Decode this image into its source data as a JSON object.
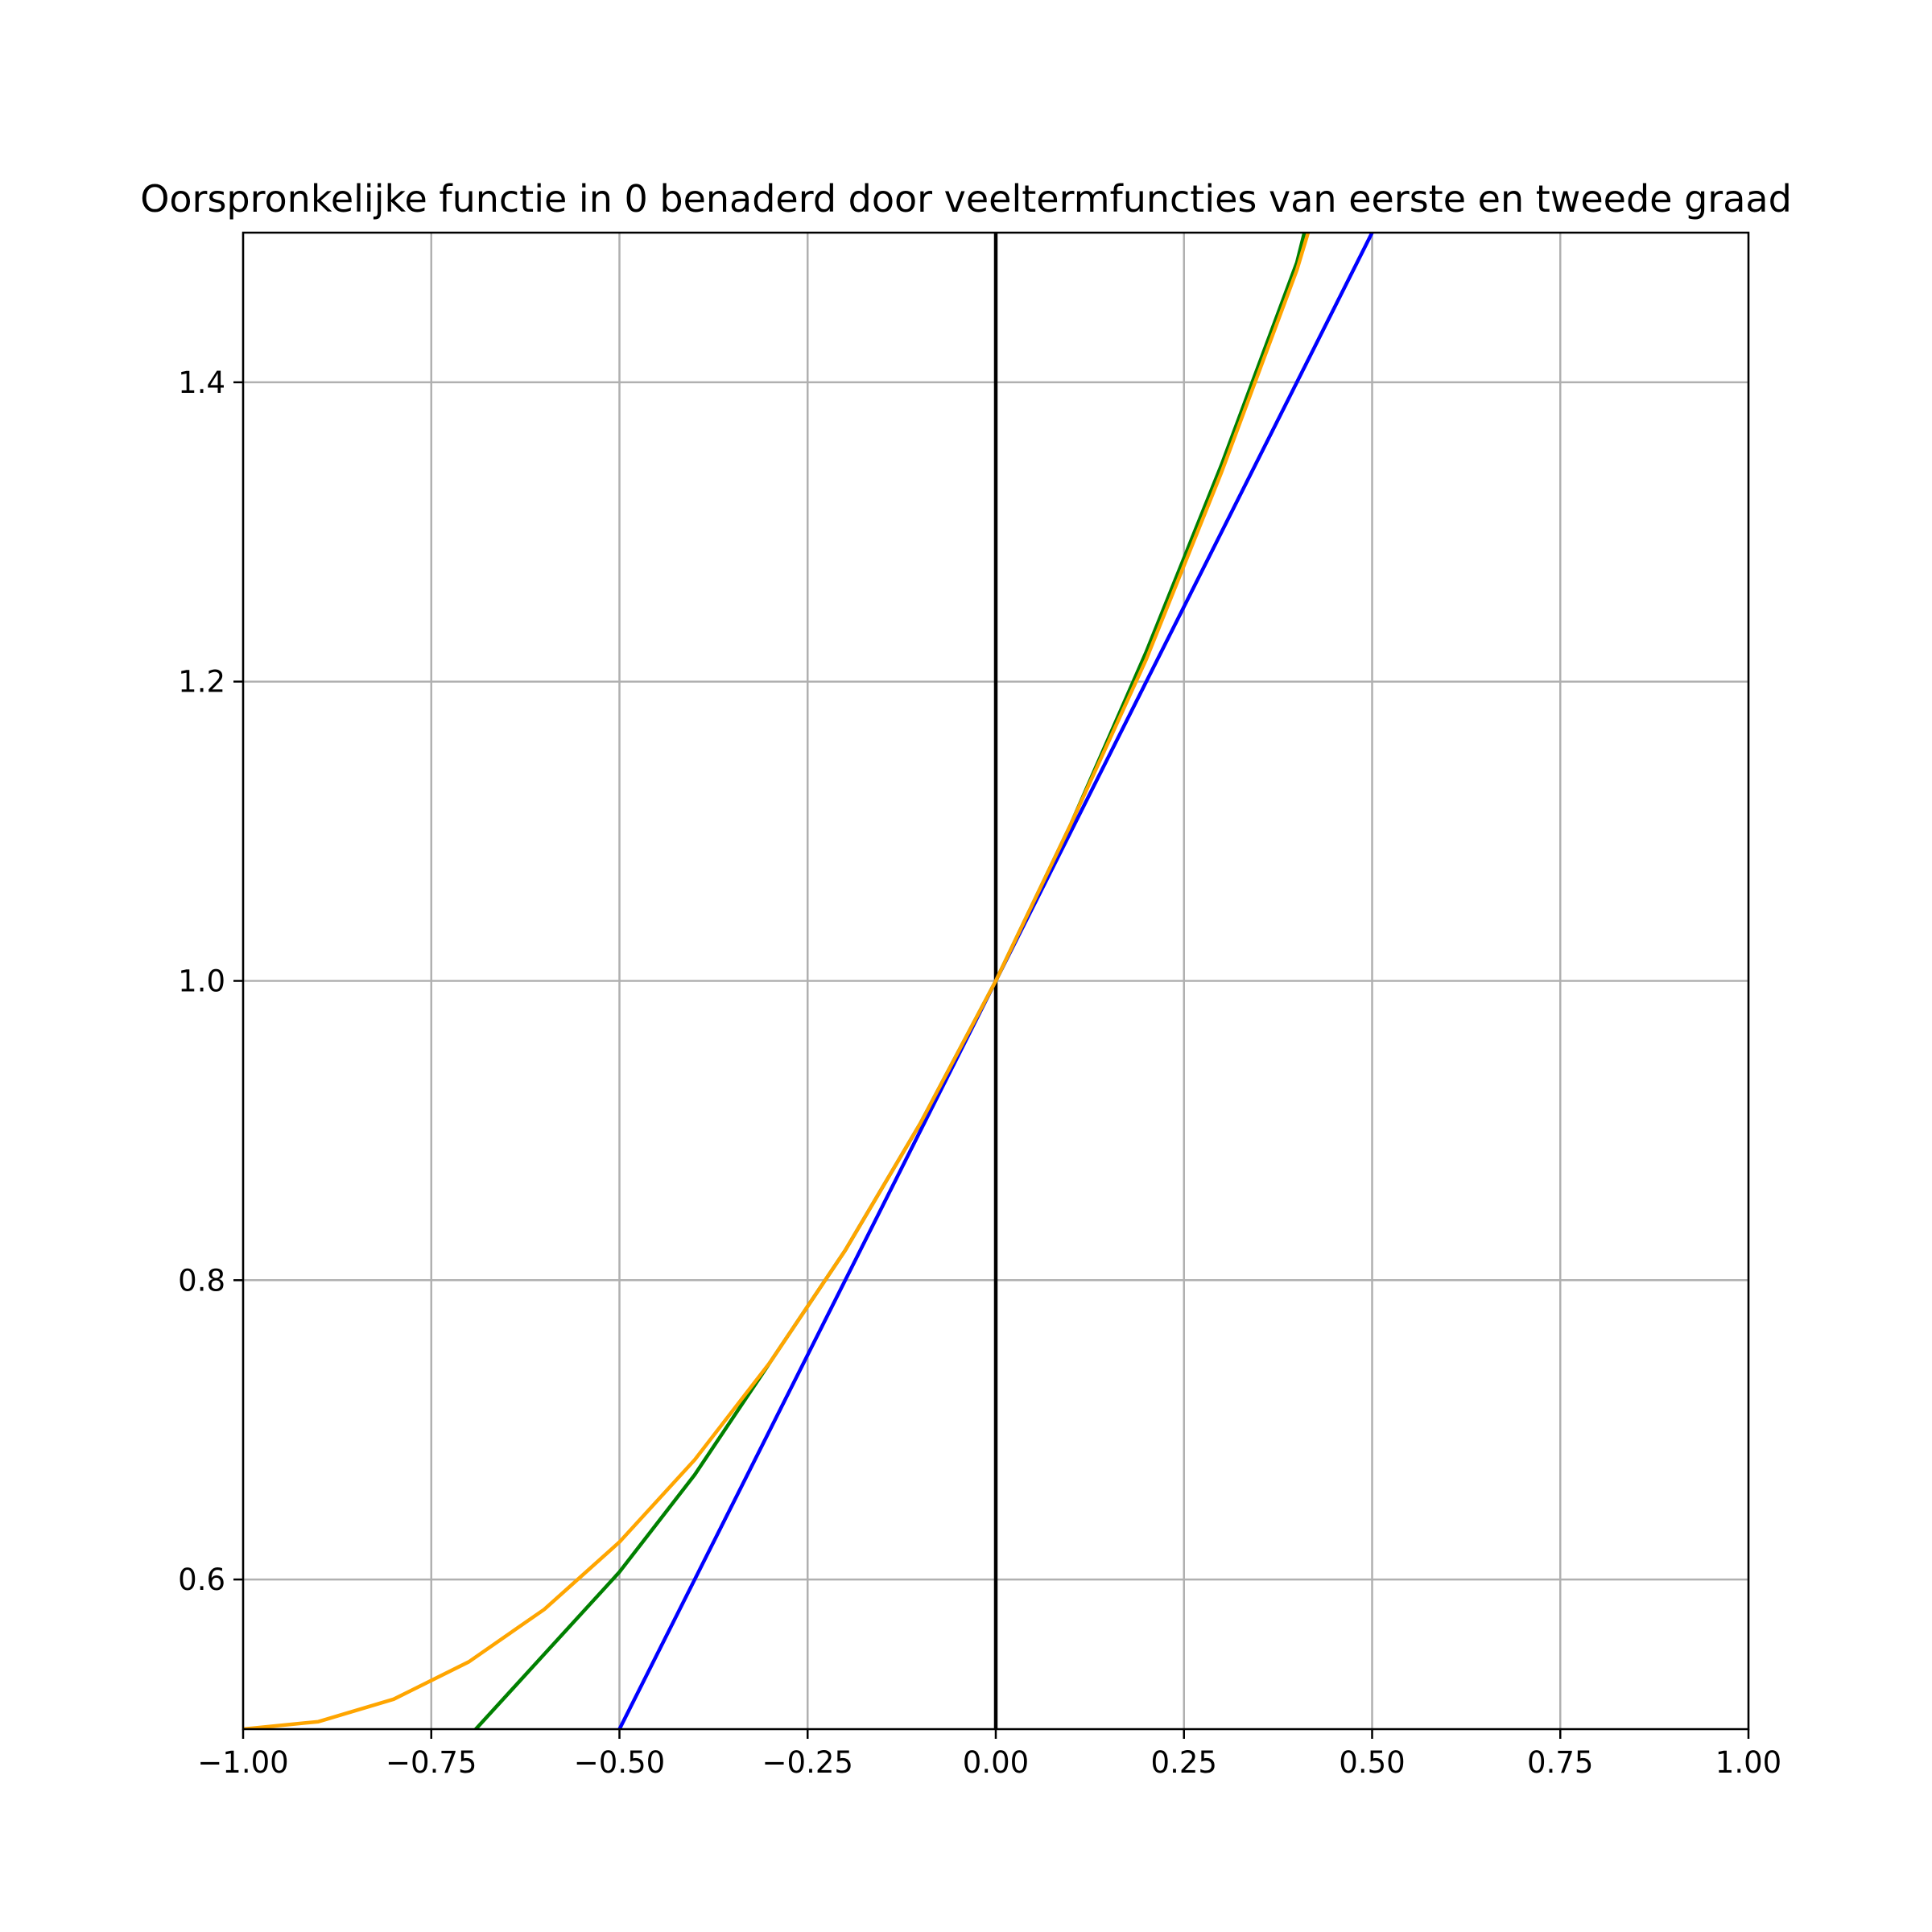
{
  "chart_data": {
    "type": "line",
    "title": "Oorspronkelijke functie in 0 benaderd door veeltermfuncties van eerste en tweede graad",
    "xlabel": "",
    "ylabel": "",
    "xlim": [
      -1.0,
      1.0
    ],
    "ylim": [
      0.5,
      1.5
    ],
    "grid": true,
    "x_ticks": [
      -1.0,
      -0.75,
      -0.5,
      -0.25,
      0.0,
      0.25,
      0.5,
      0.75,
      1.0
    ],
    "x_tick_labels": [
      "−1.00",
      "−0.75",
      "−0.50",
      "−0.25",
      "0.00",
      "0.25",
      "0.50",
      "0.75",
      "1.00"
    ],
    "y_ticks": [
      0.6,
      0.8,
      1.0,
      1.2,
      1.4
    ],
    "y_tick_labels": [
      "0.6",
      "0.8",
      "1.0",
      "1.2",
      "1.4"
    ],
    "vertical_line": {
      "x": 0.0,
      "color": "#000000"
    },
    "series": [
      {
        "color": "#0000ff",
        "x": [
          -0.5,
          0.5
        ],
        "y": [
          0.5,
          1.5
        ]
      },
      {
        "color": "#008000",
        "x": [
          -0.7,
          -0.6,
          -0.5,
          -0.4,
          -0.3,
          -0.2,
          -0.1,
          0.0,
          0.1,
          0.2,
          0.3,
          0.4,
          0.41
        ],
        "y": [
          0.495,
          0.55,
          0.605,
          0.67,
          0.745,
          0.82,
          0.905,
          1.0,
          1.105,
          1.22,
          1.345,
          1.48,
          1.5
        ]
      },
      {
        "color": "#ffa500",
        "x": [
          -1.0,
          -0.9,
          -0.8,
          -0.7,
          -0.6,
          -0.5,
          -0.4,
          -0.3,
          -0.2,
          -0.1,
          0.0,
          0.1,
          0.2,
          0.3,
          0.4,
          0.415
        ],
        "y": [
          0.5,
          0.505,
          0.52,
          0.545,
          0.58,
          0.625,
          0.68,
          0.745,
          0.82,
          0.905,
          1.0,
          1.105,
          1.215,
          1.34,
          1.475,
          1.5
        ]
      }
    ]
  }
}
